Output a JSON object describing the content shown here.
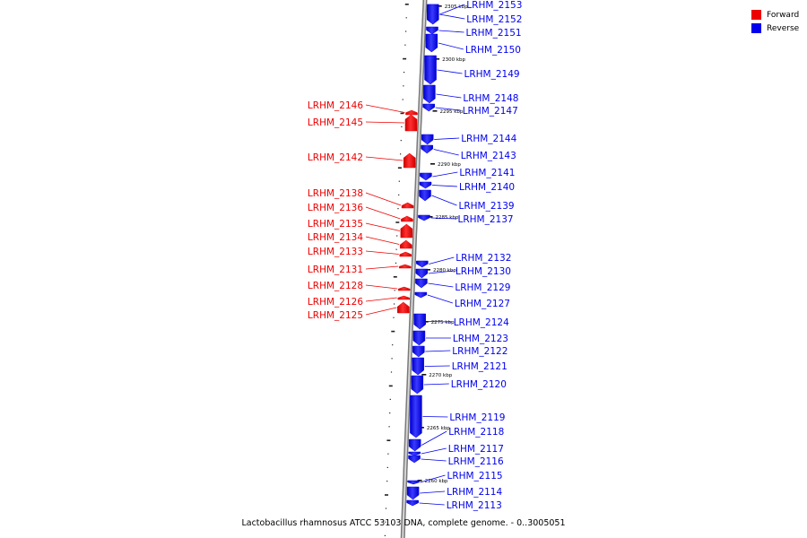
{
  "legend": {
    "forward_label": "Forward",
    "reverse_label": "Reverse",
    "forward_color": "#ee0000",
    "reverse_color": "#0000ee"
  },
  "caption": "Lactobacillus rhamnosus ATCC 53103 DNA, complete genome. - 0..3005051",
  "scale_labels": [
    "2305 kbp",
    "2300 kbp",
    "2295 kbp",
    "2290 kbp",
    "2285 kbp",
    "2280 kbp",
    "2275 kbp",
    "2270 kbp",
    "2265 kbp",
    "2260 kbp"
  ],
  "forward_genes": [
    "LRHM_2146",
    "LRHM_2145",
    "LRHM_2142",
    "LRHM_2138",
    "LRHM_2136",
    "LRHM_2135",
    "LRHM_2134",
    "LRHM_2133",
    "LRHM_2131",
    "LRHM_2128",
    "LRHM_2126",
    "LRHM_2125"
  ],
  "reverse_genes": [
    "LRHM_2153",
    "LRHM_2152",
    "LRHM_2151",
    "LRHM_2150",
    "LRHM_2149",
    "LRHM_2148",
    "LRHM_2147",
    "LRHM_2144",
    "LRHM_2143",
    "LRHM_2141",
    "LRHM_2140",
    "LRHM_2139",
    "LRHM_2137",
    "LRHM_2132",
    "LRHM_2130",
    "LRHM_2129",
    "LRHM_2127",
    "LRHM_2124",
    "LRHM_2123",
    "LRHM_2122",
    "LRHM_2121",
    "LRHM_2120",
    "LRHM_2119",
    "LRHM_2118",
    "LRHM_2117",
    "LRHM_2116",
    "LRHM_2115",
    "LRHM_2114",
    "LRHM_2113"
  ]
}
